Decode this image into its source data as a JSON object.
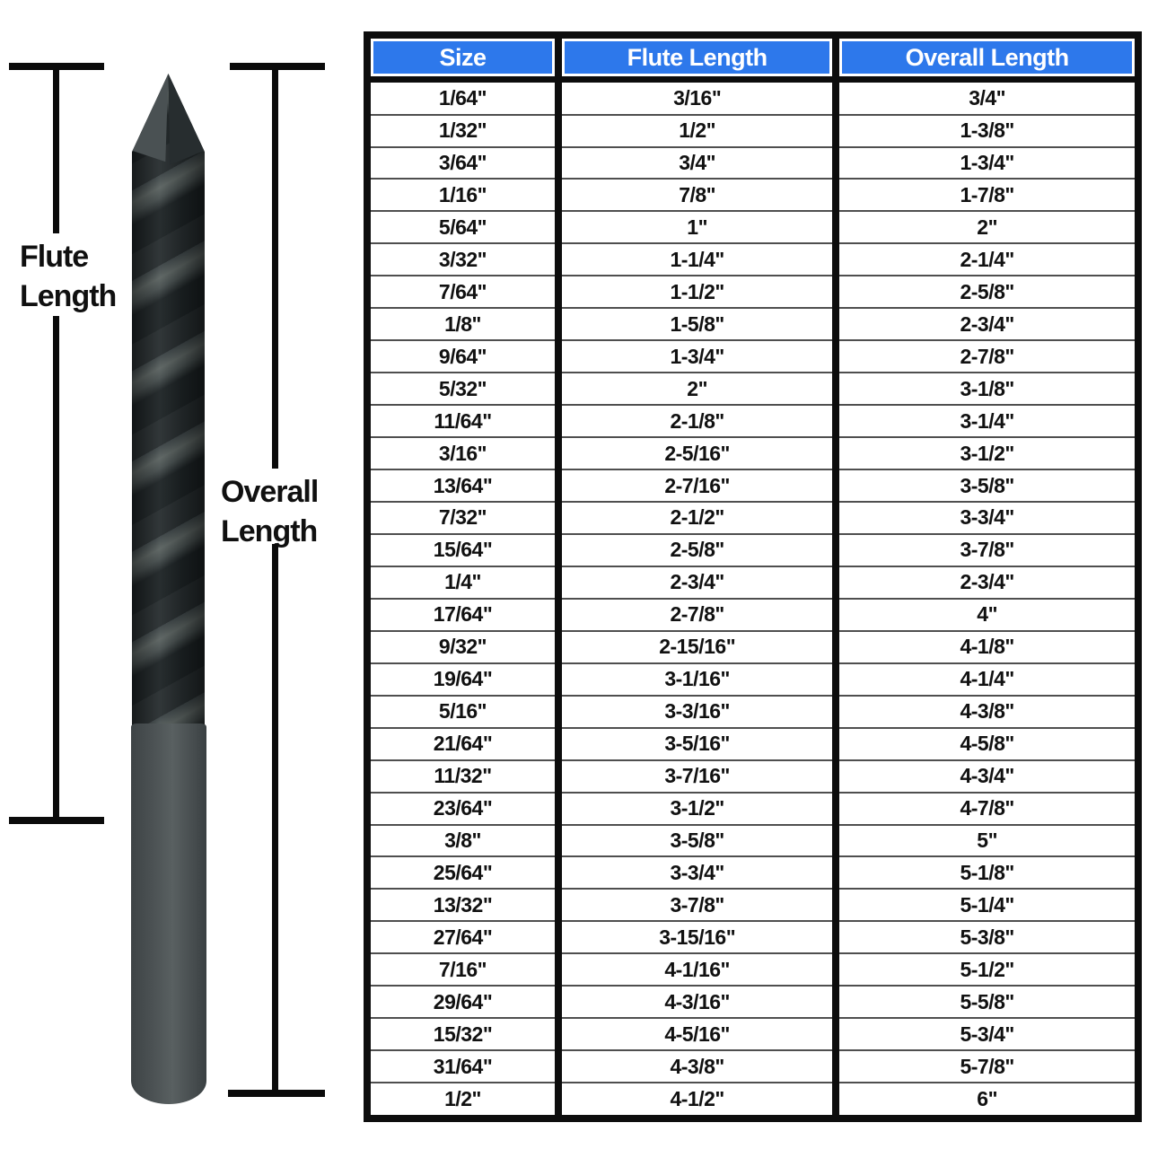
{
  "diagram": {
    "flute_length_label": {
      "line1": "Flute",
      "line2": "Length"
    },
    "overall_length_label": {
      "line1": "Overall",
      "line2": "Length"
    }
  },
  "chart_data": {
    "type": "table",
    "columns": [
      "Size",
      "Flute Length",
      "Overall Length"
    ],
    "rows": [
      [
        "1/64\"",
        "3/16\"",
        "3/4\""
      ],
      [
        "1/32\"",
        "1/2\"",
        "1-3/8\""
      ],
      [
        "3/64\"",
        "3/4\"",
        "1-3/4\""
      ],
      [
        "1/16\"",
        "7/8\"",
        "1-7/8\""
      ],
      [
        "5/64\"",
        "1\"",
        "2\""
      ],
      [
        "3/32\"",
        "1-1/4\"",
        "2-1/4\""
      ],
      [
        "7/64\"",
        "1-1/2\"",
        "2-5/8\""
      ],
      [
        "1/8\"",
        "1-5/8\"",
        "2-3/4\""
      ],
      [
        "9/64\"",
        "1-3/4\"",
        "2-7/8\""
      ],
      [
        "5/32\"",
        "2\"",
        "3-1/8\""
      ],
      [
        "11/64\"",
        "2-1/8\"",
        "3-1/4\""
      ],
      [
        "3/16\"",
        "2-5/16\"",
        "3-1/2\""
      ],
      [
        "13/64\"",
        "2-7/16\"",
        "3-5/8\""
      ],
      [
        "7/32\"",
        "2-1/2\"",
        "3-3/4\""
      ],
      [
        "15/64\"",
        "2-5/8\"",
        "3-7/8\""
      ],
      [
        "1/4\"",
        "2-3/4\"",
        "2-3/4\""
      ],
      [
        "17/64\"",
        "2-7/8\"",
        "4\""
      ],
      [
        "9/32\"",
        "2-15/16\"",
        "4-1/8\""
      ],
      [
        "19/64\"",
        "3-1/16\"",
        "4-1/4\""
      ],
      [
        "5/16\"",
        "3-3/16\"",
        "4-3/8\""
      ],
      [
        "21/64\"",
        "3-5/16\"",
        "4-5/8\""
      ],
      [
        "11/32\"",
        "3-7/16\"",
        "4-3/4\""
      ],
      [
        "23/64\"",
        "3-1/2\"",
        "4-7/8\""
      ],
      [
        "3/8\"",
        "3-5/8\"",
        "5\""
      ],
      [
        "25/64\"",
        "3-3/4\"",
        "5-1/8\""
      ],
      [
        "13/32\"",
        "3-7/8\"",
        "5-1/4\""
      ],
      [
        "27/64\"",
        "3-15/16\"",
        "5-3/8\""
      ],
      [
        "7/16\"",
        "4-1/16\"",
        "5-1/2\""
      ],
      [
        "29/64\"",
        "4-3/16\"",
        "5-5/8\""
      ],
      [
        "15/32\"",
        "4-5/16\"",
        "5-3/4\""
      ],
      [
        "31/64\"",
        "4-3/8\"",
        "5-7/8\""
      ],
      [
        "1/2\"",
        "4-1/2\"",
        "6\""
      ]
    ]
  },
  "colors": {
    "header_bg": "#2d78eb",
    "header_text": "#ffffff",
    "table_border": "#0d0d0d",
    "row_divider": "#4f4f4f",
    "cell_text": "#111111",
    "dimension_line": "#0b0b0b"
  }
}
